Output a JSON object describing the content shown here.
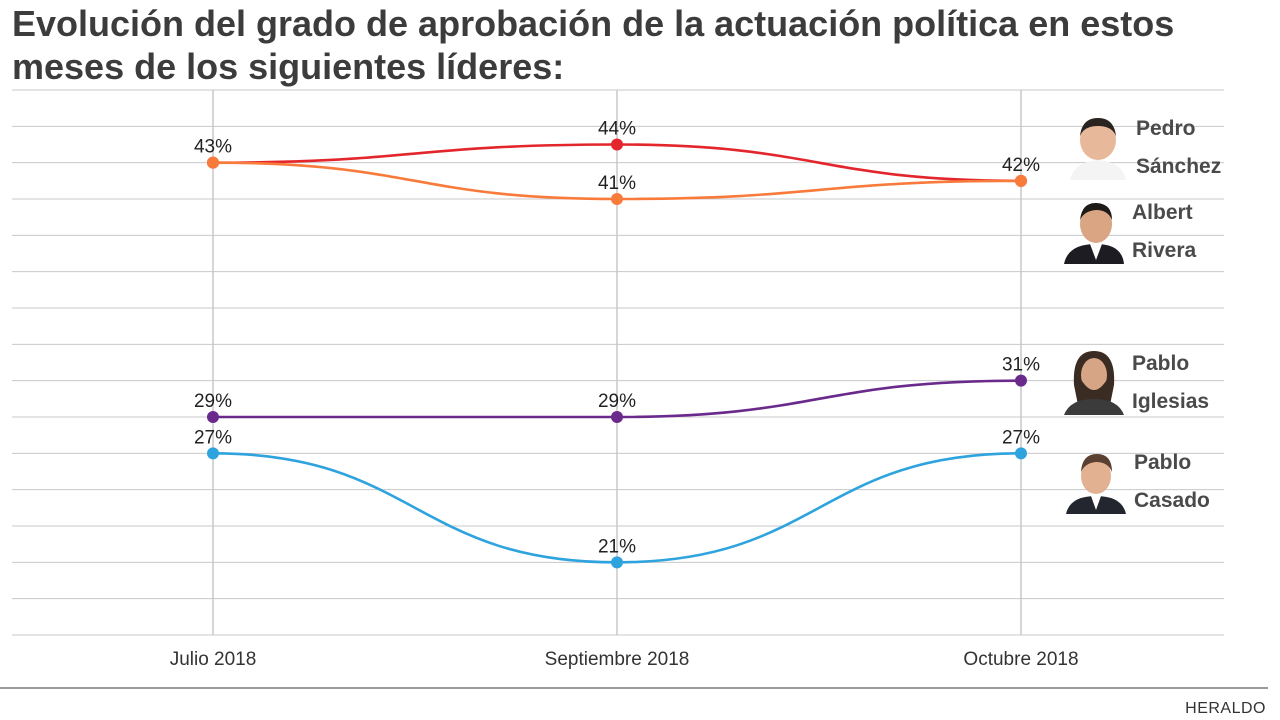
{
  "title": {
    "line1": "Evolución del grado de aprobación de la actuación política en estos",
    "line2": "meses de los siguientes líderes:"
  },
  "source": "HERALDO",
  "chart_data": {
    "type": "line",
    "title": "Evolución del grado de aprobación de la actuación política en estos meses de los siguientes líderes:",
    "categories": [
      "Julio 2018",
      "Septiembre 2018",
      "Octubre 2018"
    ],
    "value_suffix": "%",
    "ylim": [
      17,
      47
    ],
    "grid": true,
    "legend": "right",
    "series": [
      {
        "name": "Pedro Sánchez",
        "values": [
          43,
          44,
          42
        ],
        "color": "#e3262b",
        "labels": [
          "",
          "44%",
          "42%"
        ],
        "label_side": [
          "above",
          "above",
          "above"
        ]
      },
      {
        "name": "Albert Rivera",
        "values": [
          43,
          41,
          42
        ],
        "color": "#f97b3c",
        "labels": [
          "43%",
          "41%",
          ""
        ],
        "label_side": [
          "above",
          "above",
          "above"
        ]
      },
      {
        "name": "Pablo Iglesias",
        "values": [
          29,
          29,
          31
        ],
        "color": "#6a2a8c",
        "labels": [
          "29%",
          "29%",
          "31%"
        ],
        "label_side": [
          "above",
          "above",
          "above"
        ]
      },
      {
        "name": "Pablo Casado",
        "values": [
          27,
          21,
          27
        ],
        "color": "#2ea3de",
        "labels": [
          "27%",
          "21%",
          "27%"
        ],
        "label_side": [
          "above",
          "above",
          "above"
        ]
      }
    ]
  },
  "leaders": [
    {
      "first": "Pedro",
      "last": "Sánchez",
      "avatar": "pedro-sanchez-photo"
    },
    {
      "first": "Albert",
      "last": "Rivera",
      "avatar": "albert-rivera-photo"
    },
    {
      "first": "Pablo",
      "last": "Iglesias",
      "avatar": "pablo-iglesias-photo"
    },
    {
      "first": "Pablo",
      "last": "Casado",
      "avatar": "pablo-casado-photo"
    }
  ]
}
